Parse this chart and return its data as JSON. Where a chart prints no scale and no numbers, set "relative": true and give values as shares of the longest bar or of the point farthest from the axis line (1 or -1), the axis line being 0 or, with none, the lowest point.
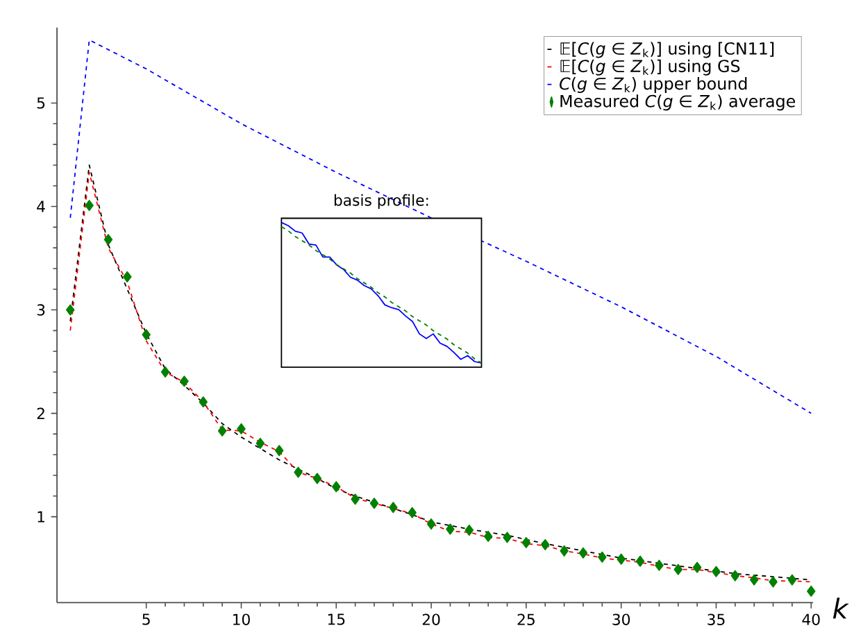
{
  "chart_data": [
    {
      "type": "line",
      "xlabel": "*k*",
      "xlim": [
        0.3,
        40.1
      ],
      "ylim": [
        0.17,
        5.73
      ],
      "xticks": [
        5,
        10,
        15,
        20,
        25,
        30,
        35,
        40
      ],
      "yticks": [
        1,
        2,
        3,
        4,
        5
      ],
      "legend": "top right",
      "x": [
        1,
        2,
        3,
        4,
        5,
        6,
        7,
        8,
        9,
        10,
        11,
        12,
        13,
        14,
        15,
        16,
        17,
        18,
        19,
        20,
        21,
        22,
        23,
        24,
        25,
        26,
        27,
        28,
        29,
        30,
        31,
        32,
        33,
        34,
        35,
        36,
        37,
        38,
        39,
        40
      ],
      "series": [
        {
          "name": "𝔼[*C*(*g* ∈ *Z*$_{k}$)] using [CN11]",
          "color": "#000000",
          "line_style": "dashed",
          "x": [
            1,
            2,
            3,
            4,
            5,
            6,
            7,
            8,
            9,
            10,
            11,
            12,
            13,
            14,
            15,
            16,
            17,
            18,
            19,
            20,
            22,
            24,
            26,
            28,
            30,
            32,
            34,
            36,
            38,
            40
          ],
          "values": [
            2.89,
            4.4,
            3.63,
            3.2,
            2.77,
            2.43,
            2.27,
            2.1,
            1.9,
            1.77,
            1.66,
            1.55,
            1.46,
            1.37,
            1.27,
            1.2,
            1.14,
            1.08,
            1.02,
            0.95,
            0.88,
            0.82,
            0.74,
            0.67,
            0.6,
            0.55,
            0.5,
            0.45,
            0.42,
            0.39
          ]
        },
        {
          "name": "𝔼[*C*(*g* ∈ *Z*$_{k}$)] using GS",
          "color": "#ff0000",
          "line_style": "dashed",
          "values": [
            2.8,
            4.33,
            3.6,
            3.27,
            2.7,
            2.4,
            2.3,
            2.11,
            1.84,
            1.83,
            1.72,
            1.63,
            1.43,
            1.37,
            1.29,
            1.18,
            1.13,
            1.08,
            1.03,
            0.93,
            0.86,
            0.85,
            0.8,
            0.79,
            0.74,
            0.72,
            0.67,
            0.64,
            0.6,
            0.58,
            0.56,
            0.52,
            0.49,
            0.49,
            0.46,
            0.43,
            0.41,
            0.38,
            0.38,
            0.37
          ]
        },
        {
          "name": "*C*(*g* ∈ *Z*$_{k}$) upper bound",
          "color": "#0000ff",
          "line_style": "dashed",
          "x": [
            1,
            2,
            5,
            10,
            15,
            20,
            25,
            30,
            35,
            40
          ],
          "values": [
            3.89,
            5.61,
            5.33,
            4.8,
            4.33,
            3.89,
            3.47,
            3.03,
            2.55,
            2.0
          ]
        },
        {
          "name": "Measured *C*(*g* ∈ *Z*$_{k}$) average",
          "color": "#008000",
          "type": "scatter",
          "marker": "diamond",
          "values": [
            3.0,
            4.01,
            3.68,
            3.32,
            2.76,
            2.4,
            2.31,
            2.11,
            1.83,
            1.85,
            1.71,
            1.64,
            1.43,
            1.37,
            1.29,
            1.17,
            1.13,
            1.09,
            1.04,
            0.93,
            0.88,
            0.87,
            0.81,
            0.8,
            0.75,
            0.73,
            0.67,
            0.65,
            0.61,
            0.59,
            0.57,
            0.53,
            0.49,
            0.51,
            0.47,
            0.43,
            0.39,
            0.37,
            0.39,
            0.28
          ]
        }
      ]
    },
    {
      "type": "line",
      "title": "basis profile:",
      "relative": true,
      "categories": [
        null,
        null,
        null,
        null,
        null,
        null,
        null,
        null,
        null,
        null,
        null,
        null,
        null,
        null,
        null,
        null,
        null,
        null,
        null,
        null,
        null,
        null,
        null,
        null,
        null,
        null,
        null,
        null,
        null,
        null
      ],
      "series": [
        {
          "color": "#0000ff",
          "line_style": "solid",
          "values": [
            1,
            0.977,
            0.938,
            0.925,
            0.846,
            0.839,
            0.754,
            0.754,
            0.698,
            0.666,
            0.61,
            0.59,
            0.551,
            0.528,
            0.479,
            0.413,
            0.393,
            0.38,
            0.334,
            0.295,
            0.207,
            0.174,
            0.207,
            0.141,
            0.118,
            0.075,
            0.026,
            0.052,
            0.01,
            0
          ]
        },
        {
          "color": "#008000",
          "line_style": "dashed",
          "values": [
            0.97,
            0.94,
            0.9,
            0.87,
            0.84,
            0.8,
            0.77,
            0.74,
            0.7,
            0.67,
            0.64,
            0.6,
            0.57,
            0.54,
            0.5,
            0.47,
            0.43,
            0.4,
            0.37,
            0.33,
            0.3,
            0.27,
            0.23,
            0.2,
            0.17,
            0.13,
            0.1,
            0.07,
            0.03,
            0
          ]
        }
      ]
    }
  ]
}
